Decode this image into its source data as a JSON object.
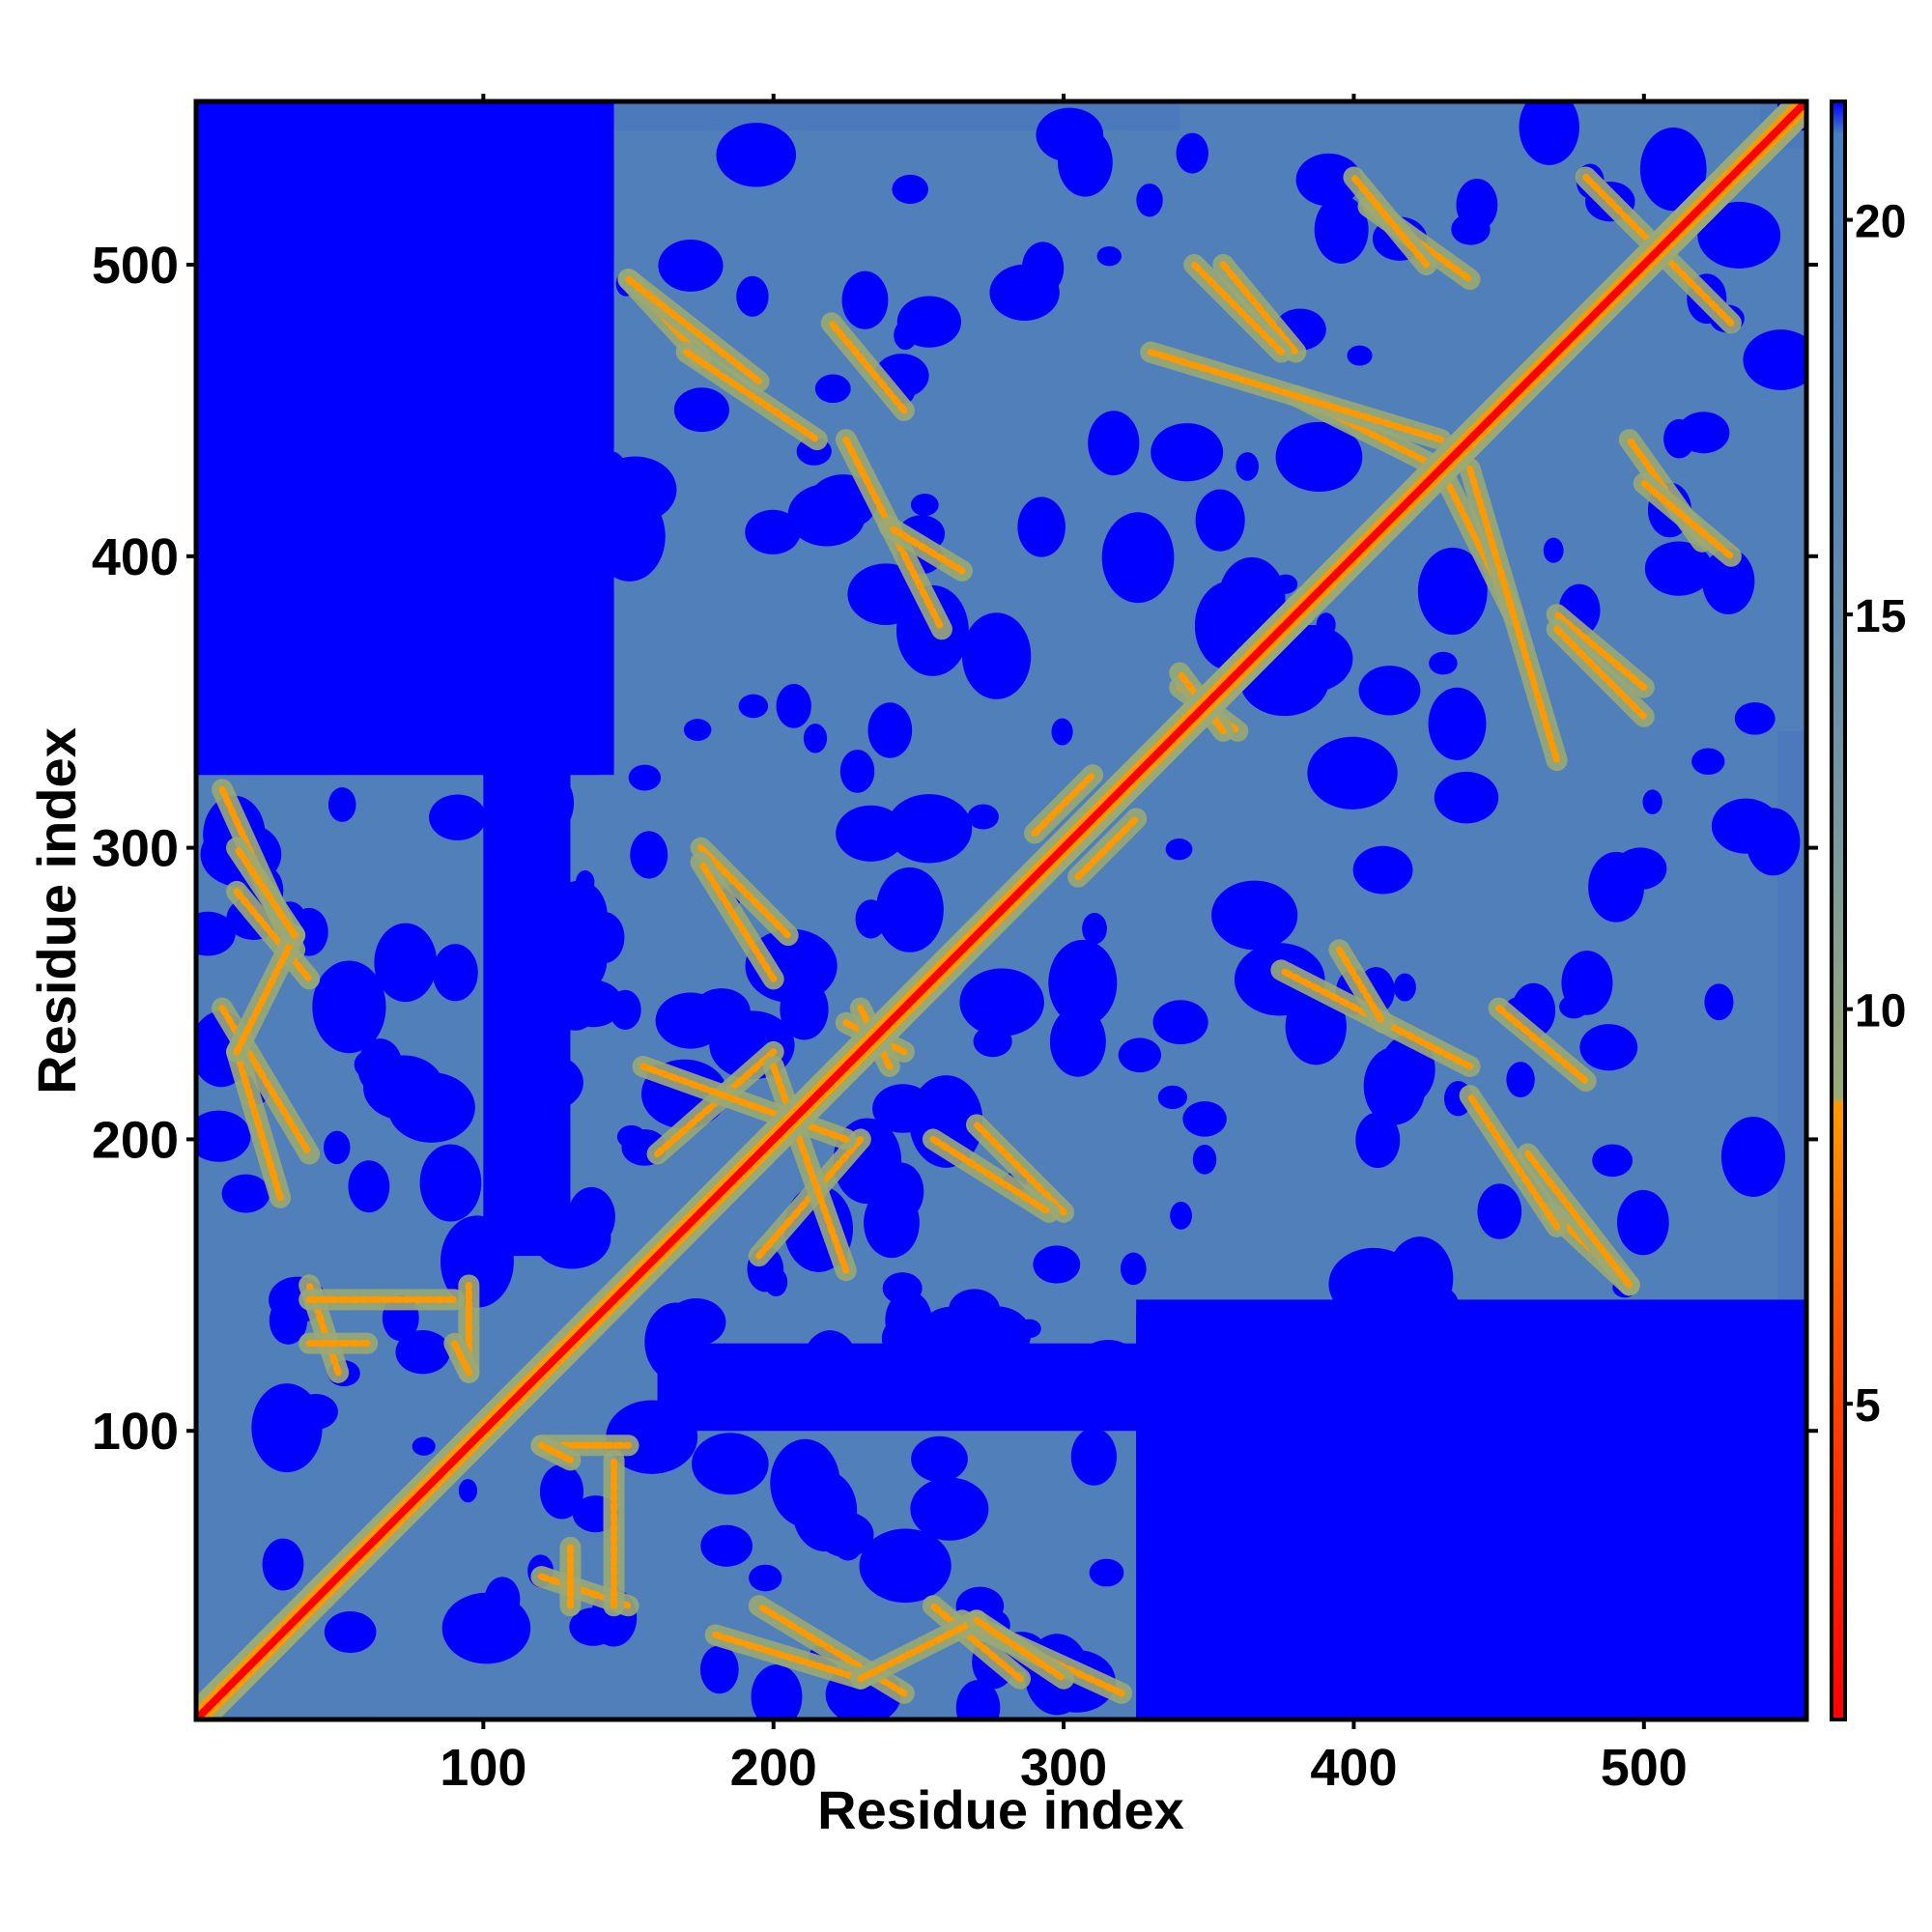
{
  "chart_data": {
    "type": "heatmap",
    "title": "",
    "xlabel": "Residue index",
    "ylabel": "Residue index",
    "xlim": [
      1,
      556
    ],
    "ylim": [
      1,
      556
    ],
    "x_ticks": [
      100,
      200,
      300,
      400,
      500
    ],
    "y_ticks": [
      100,
      200,
      300,
      400,
      500
    ],
    "colorbar": {
      "ticks": [
        5,
        10,
        15,
        20
      ],
      "range": [
        1,
        21.5
      ],
      "colors": {
        "near": "#ff0000",
        "mid_low": "#ff9900",
        "mid": "#99aa77",
        "far": "#5080b8",
        "max": "#0000ff"
      }
    },
    "description_regions": {
      "diagonal": "contacts along i = j from 1 to 556",
      "domains": [
        {
          "range": [
            1,
            330
          ],
          "label": ""
        },
        {
          "range": [
            140,
            556
          ],
          "label": ""
        }
      ]
    }
  }
}
